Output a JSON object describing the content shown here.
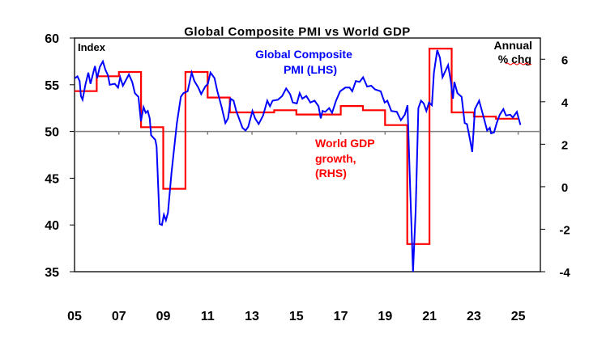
{
  "chart_data": {
    "type": "line",
    "title": "Global Composite PMI vs World GDP",
    "left_axis": {
      "label": "Index",
      "ylim": [
        35,
        60
      ],
      "ticks": [
        35,
        40,
        45,
        50,
        55,
        60
      ]
    },
    "right_axis": {
      "label_line1": "Annual",
      "label_line2": "% chg",
      "ylim": [
        -4,
        7
      ],
      "ticks": [
        -4,
        -2,
        0,
        2,
        4,
        6
      ]
    },
    "x_axis": {
      "xlim": [
        2005,
        2026
      ],
      "ticks": [
        2005,
        2007,
        2009,
        2011,
        2013,
        2015,
        2017,
        2019,
        2021,
        2023,
        2025
      ],
      "tick_labels": [
        "05",
        "07",
        "09",
        "11",
        "13",
        "15",
        "17",
        "19",
        "21",
        "23",
        "25"
      ],
      "crosses_at": 50
    },
    "grid": false,
    "series": [
      {
        "name": "Global Composite PMI (LHS)",
        "label_line1": "Global Composite",
        "label_line2": "PMI (LHS)",
        "axis": "left",
        "color": "#0000ff",
        "points": [
          [
            2005.02,
            55.7
          ],
          [
            2005.13,
            55.9
          ],
          [
            2005.23,
            55.4
          ],
          [
            2005.29,
            53.8
          ],
          [
            2005.36,
            53.4
          ],
          [
            2005.49,
            55.0
          ],
          [
            2005.62,
            56.3
          ],
          [
            2005.72,
            55.1
          ],
          [
            2005.92,
            57.0
          ],
          [
            2006.02,
            55.7
          ],
          [
            2006.14,
            56.9
          ],
          [
            2006.28,
            57.5
          ],
          [
            2006.39,
            56.6
          ],
          [
            2006.51,
            56.0
          ],
          [
            2006.59,
            55.0
          ],
          [
            2006.81,
            55.1
          ],
          [
            2006.96,
            54.7
          ],
          [
            2007.06,
            55.8
          ],
          [
            2007.18,
            54.9
          ],
          [
            2007.45,
            56.1
          ],
          [
            2007.6,
            55.3
          ],
          [
            2007.72,
            54.1
          ],
          [
            2007.88,
            53.7
          ],
          [
            2007.99,
            51.1
          ],
          [
            2008.11,
            52.6
          ],
          [
            2008.21,
            52.0
          ],
          [
            2008.3,
            52.2
          ],
          [
            2008.39,
            51.4
          ],
          [
            2008.45,
            49.6
          ],
          [
            2008.64,
            49.1
          ],
          [
            2008.7,
            48.4
          ],
          [
            2008.84,
            40.1
          ],
          [
            2008.94,
            40.0
          ],
          [
            2009.03,
            41.1
          ],
          [
            2009.12,
            40.5
          ],
          [
            2009.21,
            41.3
          ],
          [
            2009.37,
            45.6
          ],
          [
            2009.61,
            50.8
          ],
          [
            2009.79,
            53.7
          ],
          [
            2009.91,
            54.1
          ],
          [
            2010.1,
            54.3
          ],
          [
            2010.28,
            56.3
          ],
          [
            2010.4,
            55.4
          ],
          [
            2010.58,
            54.7
          ],
          [
            2010.71,
            54.0
          ],
          [
            2010.89,
            54.8
          ],
          [
            2011.01,
            55.1
          ],
          [
            2011.13,
            56.3
          ],
          [
            2011.31,
            55.7
          ],
          [
            2011.44,
            54.3
          ],
          [
            2011.62,
            52.7
          ],
          [
            2011.8,
            50.9
          ],
          [
            2011.92,
            51.4
          ],
          [
            2012.04,
            53.5
          ],
          [
            2012.17,
            53.3
          ],
          [
            2012.29,
            52.2
          ],
          [
            2012.57,
            50.4
          ],
          [
            2012.71,
            50.1
          ],
          [
            2012.83,
            50.5
          ],
          [
            2013.02,
            52.2
          ],
          [
            2013.14,
            51.4
          ],
          [
            2013.3,
            50.8
          ],
          [
            2013.5,
            51.7
          ],
          [
            2013.69,
            53.3
          ],
          [
            2013.81,
            52.7
          ],
          [
            2013.93,
            53.3
          ],
          [
            2014.17,
            53.4
          ],
          [
            2014.36,
            53.8
          ],
          [
            2014.54,
            54.6
          ],
          [
            2014.72,
            54.0
          ],
          [
            2014.84,
            53.1
          ],
          [
            2015.02,
            53.0
          ],
          [
            2015.15,
            54.1
          ],
          [
            2015.27,
            53.5
          ],
          [
            2015.45,
            53.8
          ],
          [
            2015.63,
            53.1
          ],
          [
            2015.82,
            53.3
          ],
          [
            2016.0,
            52.7
          ],
          [
            2016.1,
            51.4
          ],
          [
            2016.18,
            52.2
          ],
          [
            2016.3,
            52.1
          ],
          [
            2016.48,
            52.5
          ],
          [
            2016.61,
            52.0
          ],
          [
            2016.79,
            53.3
          ],
          [
            2016.97,
            54.3
          ],
          [
            2017.21,
            54.7
          ],
          [
            2017.4,
            54.7
          ],
          [
            2017.52,
            54.3
          ],
          [
            2017.68,
            55.4
          ],
          [
            2017.85,
            55.3
          ],
          [
            2018.01,
            55.8
          ],
          [
            2018.19,
            54.8
          ],
          [
            2018.37,
            54.9
          ],
          [
            2018.55,
            54.5
          ],
          [
            2018.8,
            54.3
          ],
          [
            2018.98,
            53.1
          ],
          [
            2019.1,
            53.3
          ],
          [
            2019.28,
            52.2
          ],
          [
            2019.53,
            52.1
          ],
          [
            2019.71,
            51.2
          ],
          [
            2019.89,
            51.8
          ],
          [
            2020.01,
            52.8
          ],
          [
            2020.13,
            43.9
          ],
          [
            2020.26,
            35.0
          ],
          [
            2020.38,
            41.6
          ],
          [
            2020.5,
            52.5
          ],
          [
            2020.62,
            53.3
          ],
          [
            2020.74,
            53.0
          ],
          [
            2020.86,
            52.2
          ],
          [
            2020.98,
            53.1
          ],
          [
            2021.11,
            52.8
          ],
          [
            2021.2,
            56.3
          ],
          [
            2021.35,
            58.7
          ],
          [
            2021.47,
            57.9
          ],
          [
            2021.59,
            55.8
          ],
          [
            2021.84,
            57.1
          ],
          [
            2021.96,
            55.4
          ],
          [
            2022.06,
            53.5
          ],
          [
            2022.12,
            55.3
          ],
          [
            2022.26,
            54.1
          ],
          [
            2022.45,
            53.7
          ],
          [
            2022.59,
            50.9
          ],
          [
            2022.69,
            50.8
          ],
          [
            2022.83,
            49.1
          ],
          [
            2022.93,
            47.8
          ],
          [
            2023.05,
            52.4
          ],
          [
            2023.24,
            53.3
          ],
          [
            2023.42,
            51.7
          ],
          [
            2023.6,
            50.1
          ],
          [
            2023.72,
            50.4
          ],
          [
            2023.78,
            49.8
          ],
          [
            2023.91,
            49.9
          ],
          [
            2024.03,
            50.9
          ],
          [
            2024.17,
            51.8
          ],
          [
            2024.33,
            52.4
          ],
          [
            2024.45,
            51.7
          ],
          [
            2024.64,
            51.8
          ],
          [
            2024.76,
            51.5
          ],
          [
            2024.94,
            52.1
          ],
          [
            2025.1,
            50.7
          ]
        ]
      },
      {
        "name": "World GDP growth, (RHS)",
        "label_line1": "World GDP",
        "label_line2": "growth,",
        "label_line3": "(RHS)",
        "axis": "right",
        "color": "#ff0000",
        "step": true,
        "years": [
          2005,
          2006,
          2007,
          2008,
          2009,
          2010,
          2011,
          2012,
          2013,
          2014,
          2015,
          2016,
          2017,
          2018,
          2019,
          2020,
          2021,
          2022,
          2023,
          2024
        ],
        "values": [
          4.5,
          5.2,
          5.4,
          2.8,
          -0.1,
          5.4,
          4.2,
          3.5,
          3.5,
          3.6,
          3.4,
          3.4,
          3.8,
          3.6,
          2.9,
          -2.7,
          6.5,
          3.5,
          3.3,
          3.2
        ]
      }
    ]
  }
}
